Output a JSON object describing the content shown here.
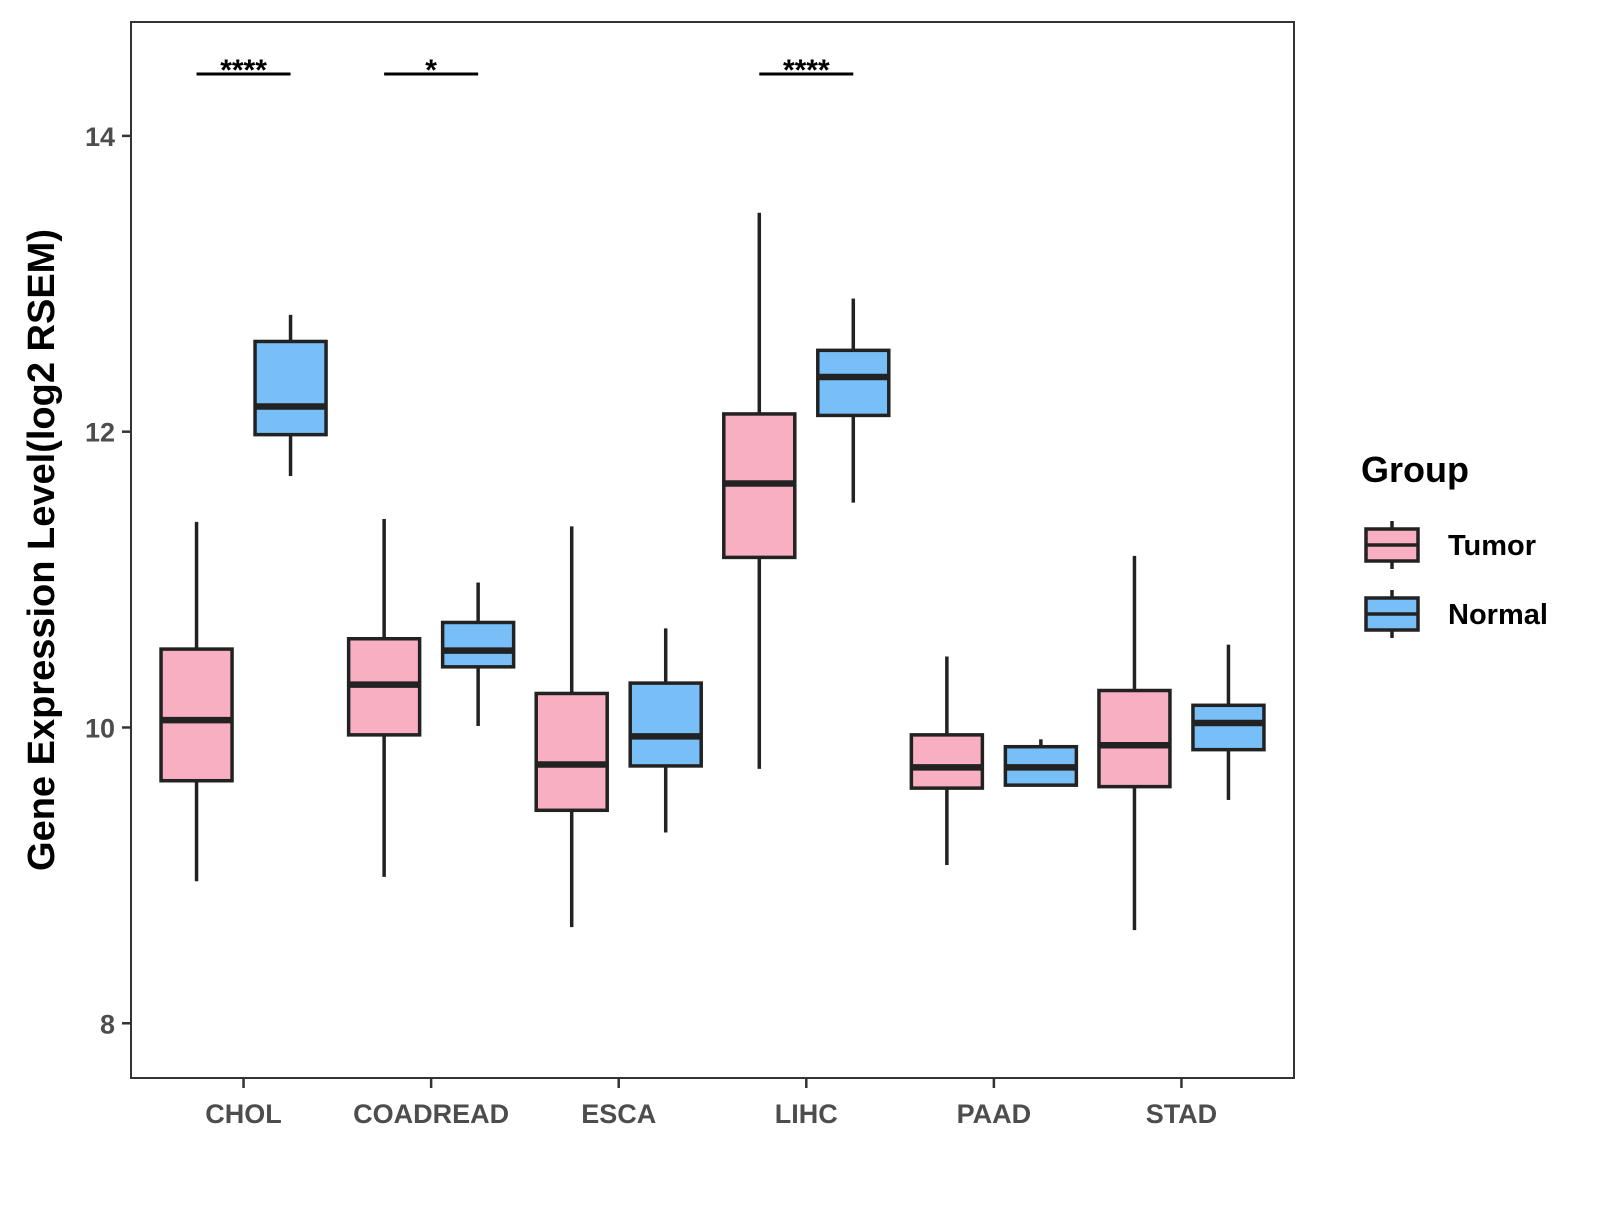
{
  "chart_data": {
    "type": "boxplot",
    "title": "",
    "xlabel": "",
    "ylabel": "Gene Expression Level(log2 RSEM)",
    "ylim": [
      7.63,
      14.77
    ],
    "yticks": [
      8,
      10,
      12,
      14
    ],
    "categories": [
      "CHOL",
      "COADREAD",
      "ESCA",
      "LIHC",
      "PAAD",
      "STAD"
    ],
    "legend": {
      "title": "Group",
      "position": "right"
    },
    "series": [
      {
        "name": "Tumor",
        "color": "#F8AFC1",
        "boxes": [
          {
            "whisker_low": 8.96,
            "q1": 9.64,
            "median": 10.05,
            "q3": 10.53,
            "whisker_high": 11.39
          },
          {
            "whisker_low": 8.99,
            "q1": 9.95,
            "median": 10.29,
            "q3": 10.6,
            "whisker_high": 11.41
          },
          {
            "whisker_low": 8.65,
            "q1": 9.44,
            "median": 9.75,
            "q3": 10.23,
            "whisker_high": 11.36
          },
          {
            "whisker_low": 9.72,
            "q1": 11.15,
            "median": 11.65,
            "q3": 12.12,
            "whisker_high": 13.48
          },
          {
            "whisker_low": 9.07,
            "q1": 9.59,
            "median": 9.73,
            "q3": 9.95,
            "whisker_high": 10.48
          },
          {
            "whisker_low": 8.63,
            "q1": 9.6,
            "median": 9.88,
            "q3": 10.25,
            "whisker_high": 11.16
          }
        ]
      },
      {
        "name": "Normal",
        "color": "#78BFF7",
        "boxes": [
          {
            "whisker_low": 11.7,
            "q1": 11.98,
            "median": 12.17,
            "q3": 12.61,
            "whisker_high": 12.79
          },
          {
            "whisker_low": 10.01,
            "q1": 10.41,
            "median": 10.52,
            "q3": 10.71,
            "whisker_high": 10.98
          },
          {
            "whisker_low": 9.29,
            "q1": 9.74,
            "median": 9.94,
            "q3": 10.3,
            "whisker_high": 10.67
          },
          {
            "whisker_low": 11.52,
            "q1": 12.11,
            "median": 12.37,
            "q3": 12.55,
            "whisker_high": 12.9
          },
          {
            "whisker_low": 9.61,
            "q1": 9.61,
            "median": 9.73,
            "q3": 9.87,
            "whisker_high": 9.92
          },
          {
            "whisker_low": 9.51,
            "q1": 9.85,
            "median": 10.03,
            "q3": 10.15,
            "whisker_high": 10.56
          }
        ]
      }
    ],
    "annotations": [
      {
        "category": "CHOL",
        "label": "****"
      },
      {
        "category": "COADREAD",
        "label": "*"
      },
      {
        "category": "LIHC",
        "label": "****"
      }
    ]
  }
}
